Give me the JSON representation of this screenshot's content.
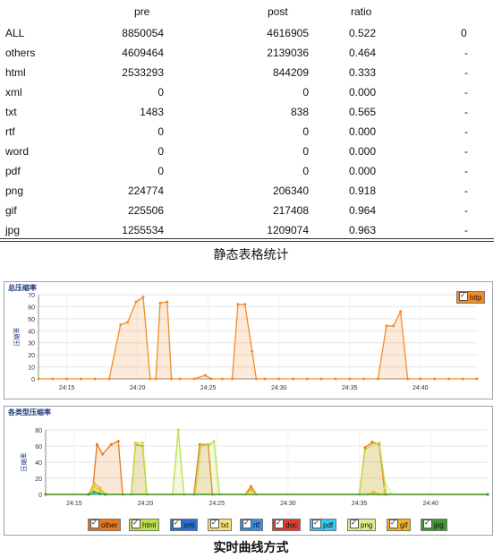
{
  "table": {
    "headers": {
      "pre": "pre",
      "post": "post",
      "ratio": "ratio"
    },
    "rows": [
      {
        "name": "ALL",
        "pre": "8850054",
        "post": "4616905",
        "ratio": "0.522",
        "extra": "0"
      },
      {
        "name": "others",
        "pre": "4609464",
        "post": "2139036",
        "ratio": "0.464",
        "extra": "-"
      },
      {
        "name": "html",
        "pre": "2533293",
        "post": "844209",
        "ratio": "0.333",
        "extra": "-"
      },
      {
        "name": "xml",
        "pre": "0",
        "post": "0",
        "ratio": "0.000",
        "extra": "-"
      },
      {
        "name": "txt",
        "pre": "1483",
        "post": "838",
        "ratio": "0.565",
        "extra": "-"
      },
      {
        "name": "rtf",
        "pre": "0",
        "post": "0",
        "ratio": "0.000",
        "extra": "-"
      },
      {
        "name": "word",
        "pre": "0",
        "post": "0",
        "ratio": "0.000",
        "extra": "-"
      },
      {
        "name": "pdf",
        "pre": "0",
        "post": "0",
        "ratio": "0.000",
        "extra": "-"
      },
      {
        "name": "png",
        "pre": "224774",
        "post": "206340",
        "ratio": "0.918",
        "extra": "-"
      },
      {
        "name": "gif",
        "pre": "225506",
        "post": "217408",
        "ratio": "0.964",
        "extra": "-"
      },
      {
        "name": "jpg",
        "pre": "1255534",
        "post": "1209074",
        "ratio": "0.963",
        "extra": "-"
      }
    ],
    "caption": "静态表格统计"
  },
  "caption_bottom": "实时曲线方式",
  "chart_data": [
    {
      "type": "area",
      "title": "总压缩率",
      "ylabel": "压缩率",
      "xlabel": "",
      "ylim": [
        0,
        70
      ],
      "yticks": [
        0,
        10,
        20,
        30,
        40,
        50,
        60,
        70
      ],
      "xticks": [
        "24:15",
        "24:20",
        "24:25",
        "24:30",
        "24:35",
        "24:40"
      ],
      "xlim": [
        0,
        31
      ],
      "grid": true,
      "legend_position": "top-right",
      "series": [
        {
          "name": "http",
          "color": "#f28c28",
          "points": [
            [
              0,
              0
            ],
            [
              1,
              0
            ],
            [
              2,
              0
            ],
            [
              3,
              0
            ],
            [
              4,
              0
            ],
            [
              5,
              0
            ],
            [
              5.8,
              45
            ],
            [
              6.3,
              47
            ],
            [
              6.9,
              64
            ],
            [
              7.4,
              68
            ],
            [
              7.9,
              0
            ],
            [
              8.3,
              0
            ],
            [
              8.6,
              63
            ],
            [
              9.1,
              64
            ],
            [
              9.4,
              0
            ],
            [
              10,
              0
            ],
            [
              11,
              0
            ],
            [
              11.8,
              3
            ],
            [
              12.2,
              0
            ],
            [
              13,
              0
            ],
            [
              13.7,
              0
            ],
            [
              14.1,
              62
            ],
            [
              14.6,
              62
            ],
            [
              15.1,
              23
            ],
            [
              15.4,
              0
            ],
            [
              16,
              0
            ],
            [
              17,
              0
            ],
            [
              18,
              0
            ],
            [
              19,
              0
            ],
            [
              20,
              0
            ],
            [
              21,
              0
            ],
            [
              22,
              0
            ],
            [
              23,
              0
            ],
            [
              24,
              0
            ],
            [
              24.6,
              44
            ],
            [
              25.1,
              44
            ],
            [
              25.6,
              56
            ],
            [
              26.1,
              0
            ],
            [
              27,
              0
            ],
            [
              28,
              0
            ],
            [
              29,
              0
            ],
            [
              30,
              0
            ],
            [
              31,
              0
            ]
          ]
        }
      ]
    },
    {
      "type": "area",
      "title": "各类型压缩率",
      "ylabel": "压缩率",
      "xlabel": "",
      "ylim": [
        0,
        80
      ],
      "yticks": [
        0,
        20,
        40,
        60,
        80
      ],
      "xticks": [
        "24:15",
        "24:20",
        "24:25",
        "24:30",
        "24:35",
        "24:40"
      ],
      "xlim": [
        0,
        31
      ],
      "grid": true,
      "legend_position": "bottom",
      "series": [
        {
          "name": "other",
          "color": "#e8781a",
          "points": [
            [
              0,
              0
            ],
            [
              3,
              0
            ],
            [
              3.3,
              5
            ],
            [
              3.6,
              62
            ],
            [
              4.0,
              50
            ],
            [
              4.6,
              62
            ],
            [
              5.1,
              66
            ],
            [
              5.4,
              0
            ],
            [
              6,
              0
            ],
            [
              6.3,
              62
            ],
            [
              6.8,
              60
            ],
            [
              7.1,
              0
            ],
            [
              10.4,
              0
            ],
            [
              10.8,
              62
            ],
            [
              11.4,
              62
            ],
            [
              11.7,
              0
            ],
            [
              14,
              0
            ],
            [
              14.4,
              10
            ],
            [
              14.8,
              0
            ],
            [
              22,
              0
            ],
            [
              22.4,
              58
            ],
            [
              22.9,
              65
            ],
            [
              23.4,
              62
            ],
            [
              23.8,
              0
            ],
            [
              31,
              0
            ]
          ]
        },
        {
          "name": "html",
          "color": "#b8e04a",
          "points": [
            [
              0,
              0
            ],
            [
              3,
              0
            ],
            [
              3.4,
              10
            ],
            [
              3.8,
              5
            ],
            [
              4.2,
              0
            ],
            [
              6,
              0
            ],
            [
              6.3,
              64
            ],
            [
              6.8,
              64
            ],
            [
              7.1,
              0
            ],
            [
              8.9,
              0
            ],
            [
              9.3,
              80
            ],
            [
              9.7,
              0
            ],
            [
              10.5,
              0
            ],
            [
              10.9,
              60
            ],
            [
              11.5,
              62
            ],
            [
              11.8,
              66
            ],
            [
              12.2,
              0
            ],
            [
              22,
              0
            ],
            [
              22.4,
              55
            ],
            [
              22.9,
              62
            ],
            [
              23.4,
              64
            ],
            [
              23.9,
              0
            ],
            [
              31,
              0
            ]
          ]
        },
        {
          "name": "xml",
          "color": "#2a6fd6",
          "points": [
            [
              0,
              0
            ],
            [
              31,
              0
            ]
          ]
        },
        {
          "name": "txt",
          "color": "#f5e27a",
          "points": [
            [
              0,
              0
            ],
            [
              3,
              0
            ],
            [
              3.4,
              3
            ],
            [
              3.8,
              0
            ],
            [
              14,
              0
            ],
            [
              14.4,
              4
            ],
            [
              14.8,
              0
            ],
            [
              22.5,
              0
            ],
            [
              22.9,
              3
            ],
            [
              23.3,
              0
            ],
            [
              31,
              0
            ]
          ]
        },
        {
          "name": "rtf",
          "color": "#3a8ee6",
          "points": [
            [
              0,
              0
            ],
            [
              31,
              0
            ]
          ]
        },
        {
          "name": "doc",
          "color": "#e03a2a",
          "points": [
            [
              0,
              0
            ],
            [
              31,
              0
            ]
          ]
        },
        {
          "name": "pdf",
          "color": "#35c8f0",
          "points": [
            [
              0,
              0
            ],
            [
              31,
              0
            ]
          ]
        },
        {
          "name": "png",
          "color": "#d7f08a",
          "points": [
            [
              0,
              0
            ],
            [
              3,
              0
            ],
            [
              3.4,
              6
            ],
            [
              3.8,
              2
            ],
            [
              4.2,
              0
            ],
            [
              14,
              0
            ],
            [
              14.4,
              2
            ],
            [
              14.8,
              0
            ],
            [
              23.5,
              0
            ],
            [
              23.9,
              12
            ],
            [
              24.3,
              0
            ],
            [
              31,
              0
            ]
          ]
        },
        {
          "name": "gif",
          "color": "#f2b21c",
          "points": [
            [
              0,
              0
            ],
            [
              3,
              0
            ],
            [
              3.4,
              14
            ],
            [
              3.8,
              8
            ],
            [
              4.2,
              0
            ],
            [
              14,
              0
            ],
            [
              14.4,
              6
            ],
            [
              14.8,
              0
            ],
            [
              22.6,
              0
            ],
            [
              23.0,
              3
            ],
            [
              23.4,
              0
            ],
            [
              31,
              0
            ]
          ]
        },
        {
          "name": "jpg",
          "color": "#3c9a2e",
          "points": [
            [
              0,
              0
            ],
            [
              3,
              0
            ],
            [
              3.4,
              3
            ],
            [
              3.8,
              1
            ],
            [
              4.2,
              0
            ],
            [
              31,
              0
            ]
          ]
        }
      ]
    }
  ]
}
